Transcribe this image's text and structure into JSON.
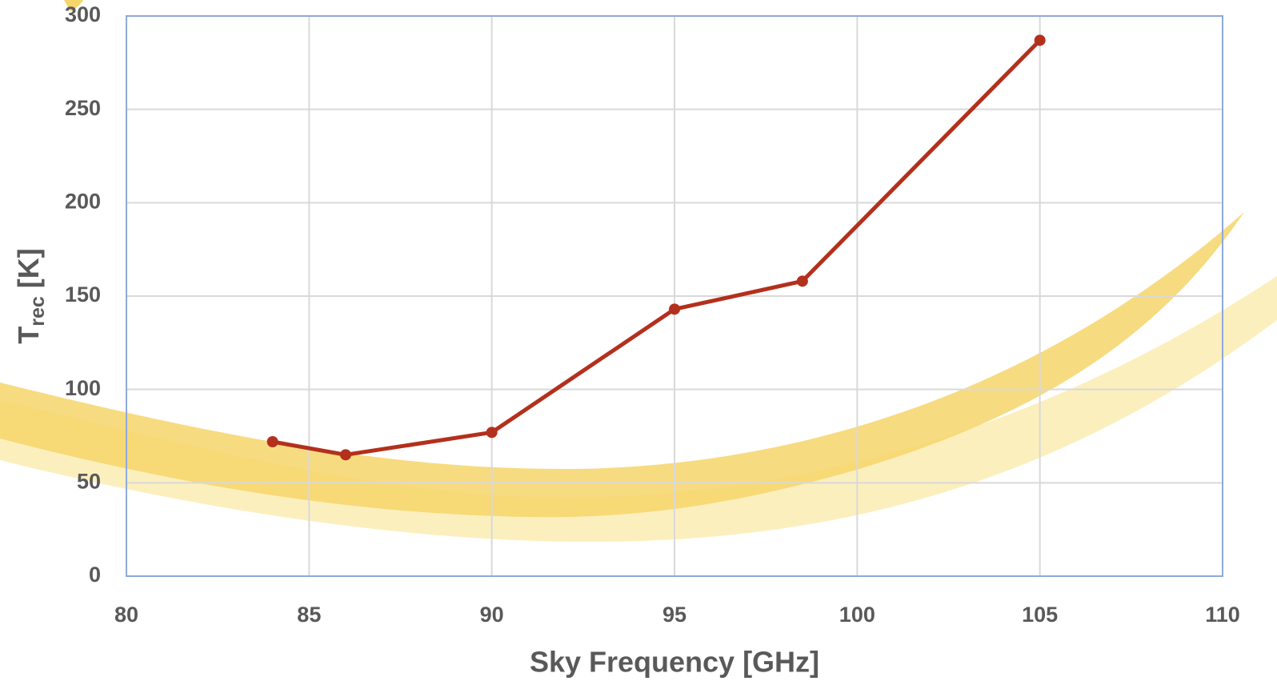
{
  "chart_data": {
    "type": "line",
    "x_label": "Sky Frequency [GHz]",
    "y_label": {
      "main": "T",
      "subscript": "rec",
      "suffix": " [K]"
    },
    "series": [
      {
        "color": "#b3301c",
        "x": [
          84,
          86,
          90,
          95,
          98.5,
          105
        ],
        "values": [
          72,
          65,
          77,
          143,
          158,
          287
        ]
      }
    ],
    "xlim": [
      80,
      110
    ],
    "xticks": [
      80,
      85,
      90,
      95,
      100,
      105,
      110
    ],
    "ylim": [
      0,
      300
    ],
    "yticks": [
      0,
      50,
      100,
      150,
      200,
      250,
      300
    ],
    "grid": true
  }
}
